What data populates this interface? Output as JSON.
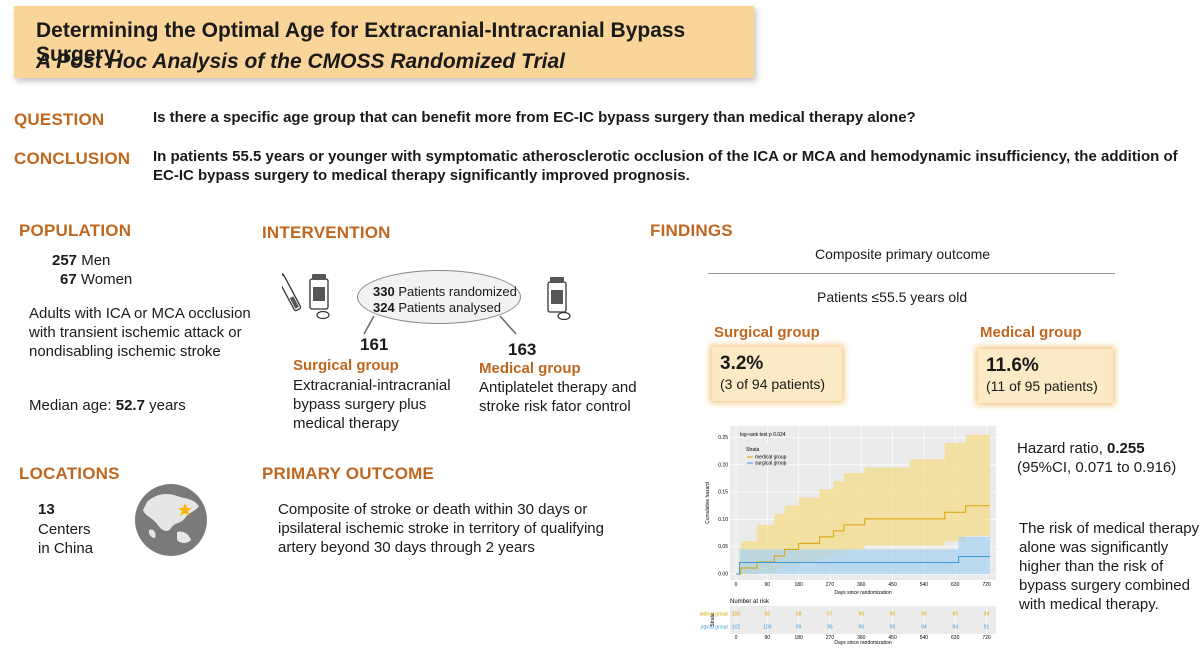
{
  "title": {
    "line1": "Determining the Optimal Age for Extracranial-Intracranial Bypass Surgery:",
    "line2": "A Post Hoc Analysis of the CMOSS Randomized Trial"
  },
  "question": {
    "label": "QUESTION",
    "text": "Is there a specific age group that can benefit more from EC-IC bypass surgery than medical therapy alone?"
  },
  "conclusion": {
    "label": "CONCLUSION",
    "text": "In patients 55.5 years or younger with symptomatic atherosclerotic occlusion of the ICA or MCA and hemodynamic insufficiency, the addition of EC-IC bypass surgery to medical therapy significantly improved prognosis."
  },
  "population": {
    "label": "POPULATION",
    "men_count": "257",
    "men_label": "Men",
    "women_count": "67",
    "women_label": "Women",
    "description": "Adults with ICA or MCA occlusion with transient ischemic attack or nondisabling ischemic stroke",
    "median_label": "Median age:",
    "median_value": "52.7",
    "median_unit": "years"
  },
  "locations": {
    "label": "LOCATIONS",
    "count": "13",
    "line1": "Centers",
    "line2": "in China"
  },
  "intervention": {
    "label": "INTERVENTION",
    "randomized_count": "330",
    "randomized_label": "Patients randomized",
    "analysed_count": "324",
    "analysed_label": "Patients analysed",
    "surgical": {
      "count": "161",
      "name": "Surgical group",
      "description": "Extracranial-intracranial bypass surgery plus medical therapy"
    },
    "medical": {
      "count": "163",
      "name": "Medical group",
      "description": "Antiplatelet therapy and stroke risk fator control"
    }
  },
  "primary_outcome": {
    "label": "PRIMARY OUTCOME",
    "text": "Composite of stroke or death within 30 days or ipsilateral ischemic stroke in territory of qualifying artery beyond 30 days through 2 years"
  },
  "findings": {
    "label": "FINDINGS",
    "outcome_title": "Composite primary outcome",
    "subgroup": "Patients ≤55.5 years old",
    "surgical_label": "Surgical group",
    "surgical_pct": "3.2%",
    "surgical_sub": "(3 of 94 patients)",
    "medical_label": "Medical group",
    "medical_pct": "11.6%",
    "medical_sub": "(11 of 95 patients)",
    "hazard_label": "Hazard ratio,",
    "hazard_value": "0.255",
    "ci": "(95%CI, 0.071 to 0.916)",
    "risk_text": "The risk of medical therapy alone was significantly higher than the risk of bypass surgery combined with medical therapy."
  },
  "colors": {
    "accent_orange": "#c0671f",
    "title_bg": "#fad59a",
    "medical_line": "#d9a300",
    "surgical_line": "#3a9ad9"
  },
  "chart_data": {
    "type": "line",
    "title": "",
    "annotation": "log-rank test p 0.024",
    "xlabel": "Days since randomization",
    "ylabel": "Cumulative hazard",
    "xlim": [
      0,
      730
    ],
    "ylim": [
      0,
      0.26
    ],
    "x_ticks": [
      "0",
      "90",
      "180",
      "270",
      "360",
      "450",
      "540",
      "630",
      "720"
    ],
    "y_ticks": [
      "0.00",
      "0.05",
      "0.10",
      "0.15",
      "0.20",
      "0.25"
    ],
    "legend_title": "Strata",
    "legend_position": "top-left",
    "series": [
      {
        "name": "medical group",
        "color": "#d9a300",
        "band": "#f3dc8a",
        "x": [
          0,
          14,
          60,
          110,
          140,
          180,
          240,
          280,
          310,
          370,
          420,
          500,
          600,
          660,
          700,
          730
        ],
        "y": [
          0,
          0.011,
          0.022,
          0.033,
          0.045,
          0.056,
          0.068,
          0.079,
          0.09,
          0.101,
          0.101,
          0.101,
          0.113,
          0.125,
          0.125,
          0.125
        ],
        "lower": [
          0,
          0,
          0.003,
          0.01,
          0.016,
          0.022,
          0.031,
          0.038,
          0.044,
          0.052,
          0.052,
          0.052,
          0.06,
          0.07,
          0.07,
          0.07
        ],
        "upper": [
          0,
          0.06,
          0.09,
          0.11,
          0.125,
          0.14,
          0.155,
          0.17,
          0.185,
          0.195,
          0.195,
          0.21,
          0.24,
          0.255,
          0.255,
          0.255
        ]
      },
      {
        "name": "surgical group",
        "color": "#3a9ad9",
        "band": "#a9d3ef",
        "x": [
          0,
          10,
          580,
          640,
          730
        ],
        "y": [
          0,
          0.021,
          0.021,
          0.032,
          0.032
        ],
        "lower": [
          0,
          0,
          0,
          0,
          0
        ],
        "upper": [
          0,
          0.045,
          0.045,
          0.068,
          0.068
        ]
      }
    ],
    "risk_table": {
      "title": "Number at risk",
      "strata_label": "Strata",
      "rows": [
        {
          "name": "medical group",
          "color": "#d9a300",
          "values": [
            "100",
            "98",
            "98",
            "97",
            "96",
            "95",
            "95",
            "95",
            "94"
          ]
        },
        {
          "name": "surgical group",
          "color": "#3a9ad9",
          "values": [
            "102",
            "100",
            "99",
            "96",
            "96",
            "95",
            "94",
            "94",
            "91"
          ]
        }
      ]
    }
  }
}
